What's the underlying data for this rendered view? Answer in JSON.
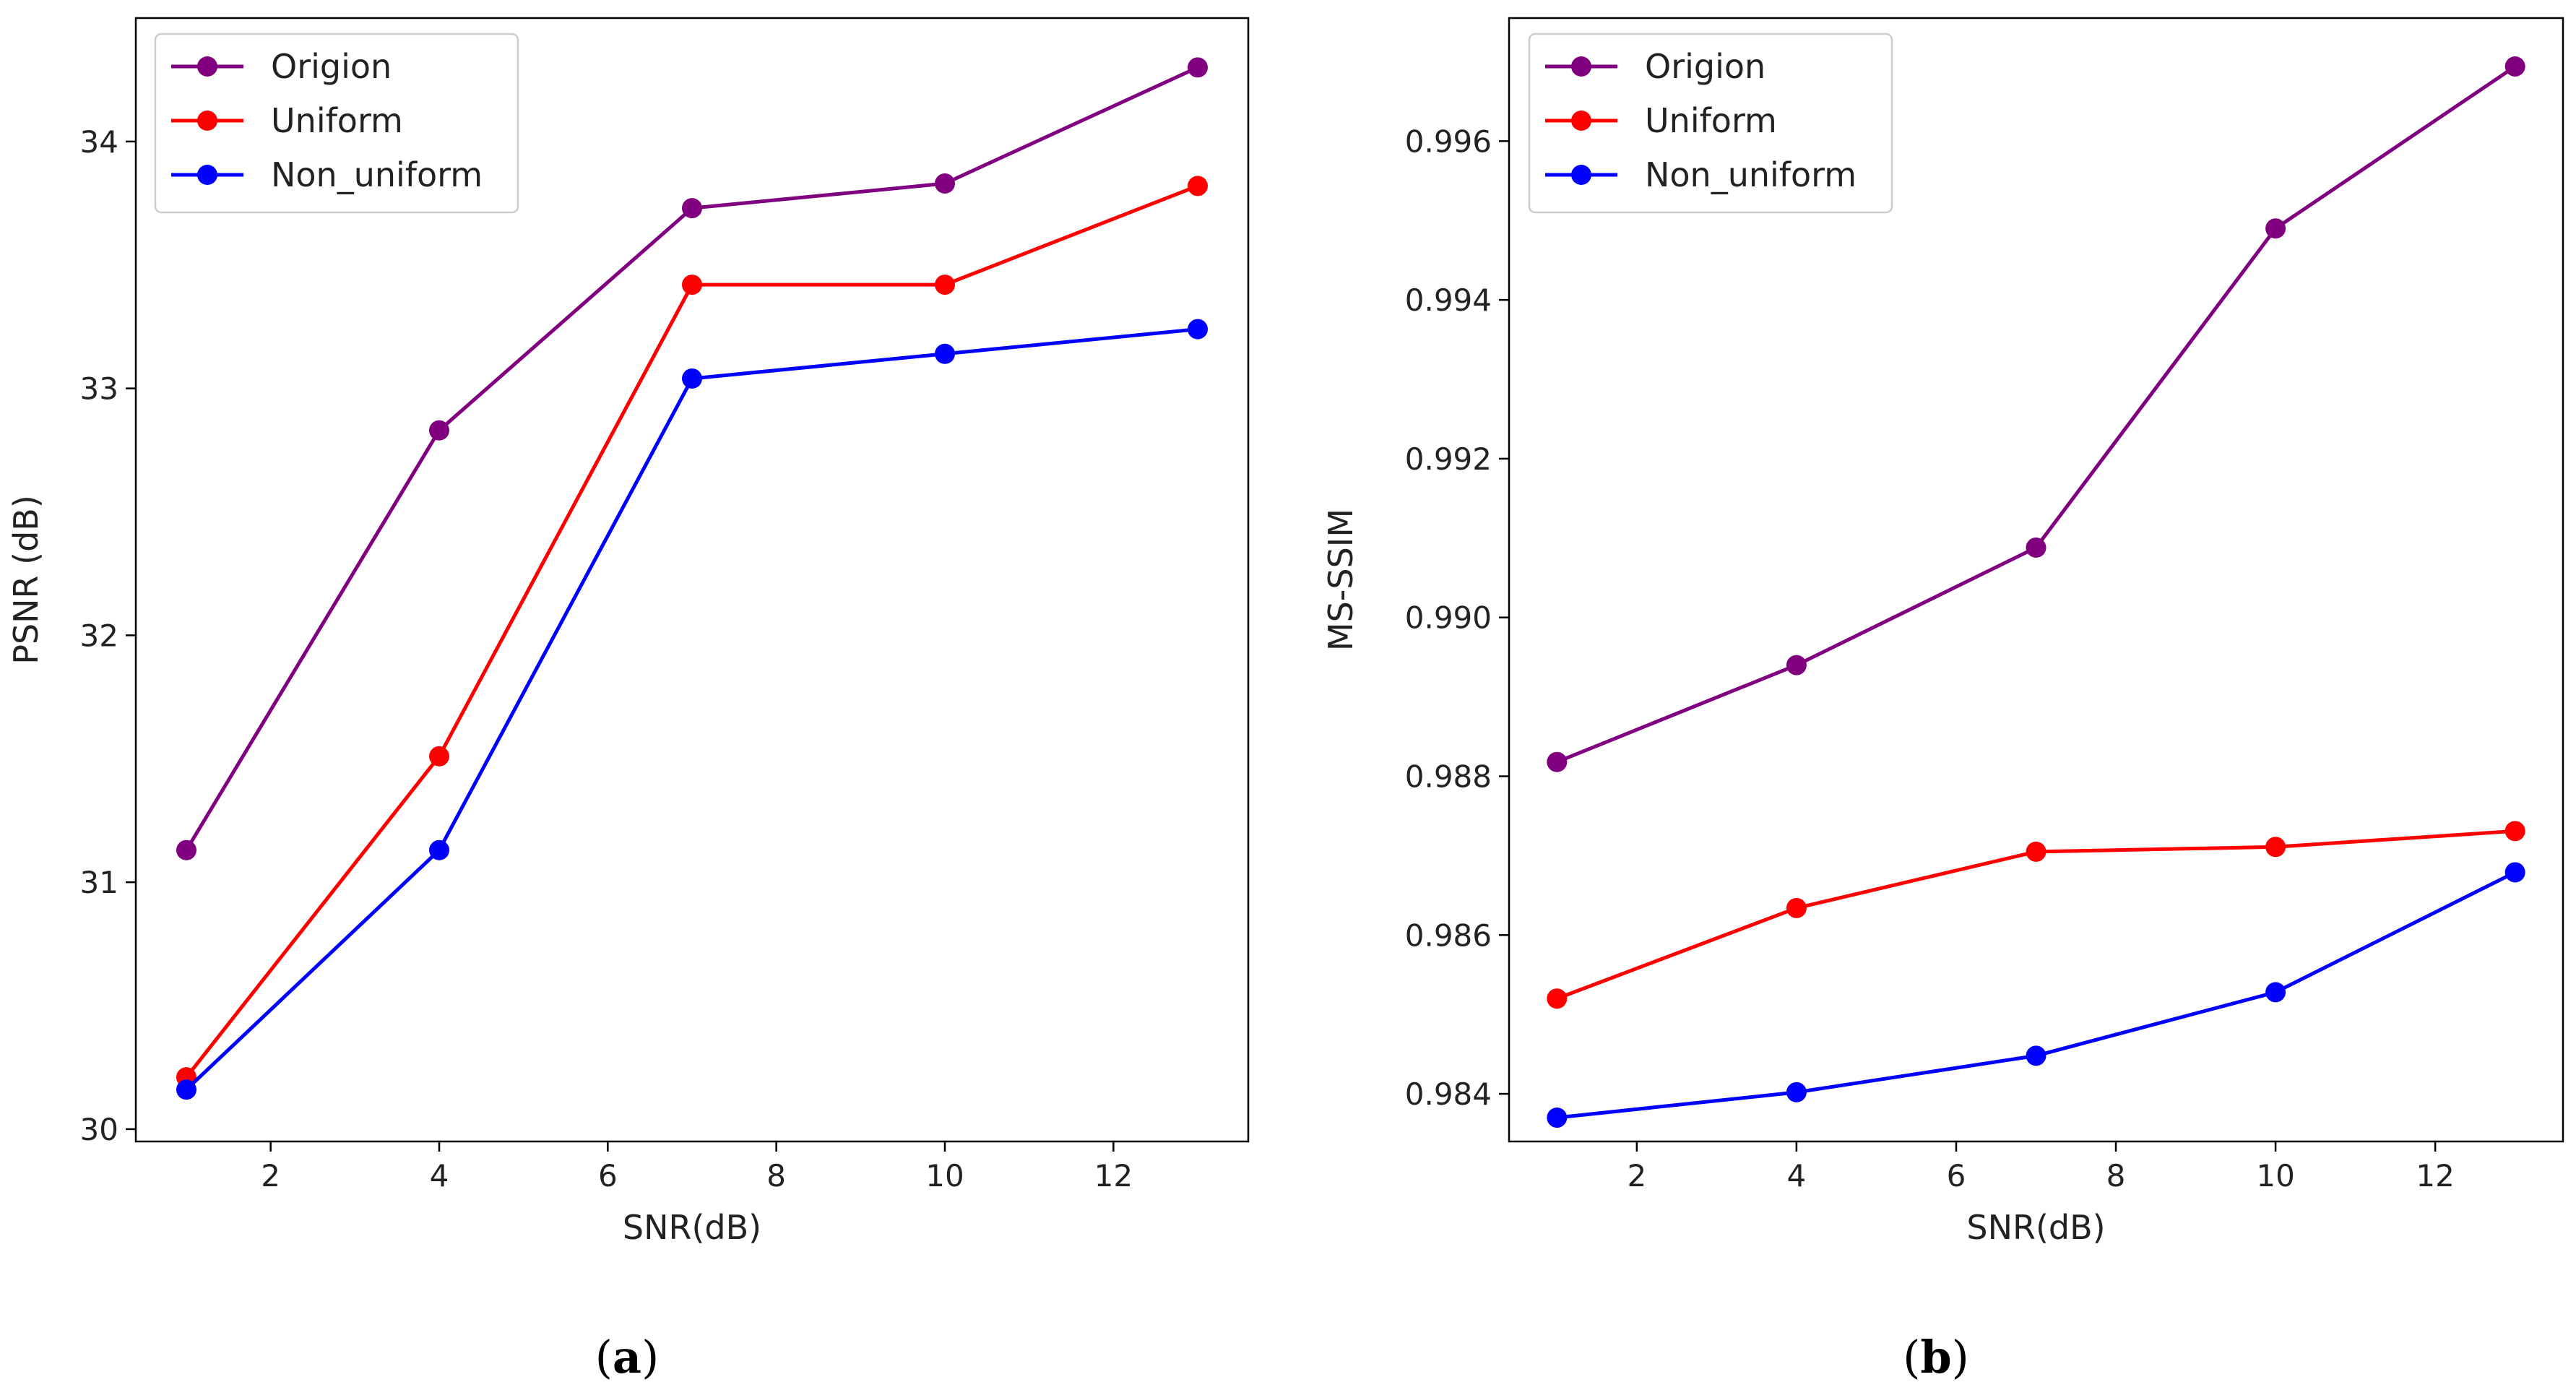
{
  "chart_data": [
    {
      "type": "line",
      "caption": "a",
      "xlabel": "SNR(dB)",
      "ylabel": "PSNR (dB)",
      "x": [
        1,
        4,
        7,
        10,
        13
      ],
      "xlim": [
        0.4,
        13.6
      ],
      "ylim": [
        29.95,
        34.5
      ],
      "xticks": [
        2,
        4,
        6,
        8,
        10,
        12
      ],
      "yticks": [
        30,
        31,
        32,
        33,
        34
      ],
      "ytick_labels": [
        "30",
        "31",
        "32",
        "33",
        "34"
      ],
      "legend_position": "top-left",
      "series": [
        {
          "name": "Origion",
          "color": "#800080",
          "values": [
            31.13,
            32.83,
            33.73,
            33.83,
            34.3
          ]
        },
        {
          "name": "Uniform",
          "color": "#ff0000",
          "values": [
            30.21,
            31.51,
            33.42,
            33.42,
            33.82
          ]
        },
        {
          "name": "Non_uniform",
          "color": "#0000ff",
          "values": [
            30.16,
            31.13,
            33.04,
            33.14,
            33.24
          ]
        }
      ]
    },
    {
      "type": "line",
      "caption": "b",
      "xlabel": "SNR(dB)",
      "ylabel": "MS-SSIM",
      "x": [
        1,
        4,
        7,
        10,
        13
      ],
      "xlim": [
        0.4,
        13.6
      ],
      "ylim": [
        0.9834,
        0.99755
      ],
      "xticks": [
        2,
        4,
        6,
        8,
        10,
        12
      ],
      "yticks": [
        0.984,
        0.986,
        0.988,
        0.99,
        0.992,
        0.994,
        0.996
      ],
      "ytick_labels": [
        "0.984",
        "0.986",
        "0.988",
        "0.990",
        "0.992",
        "0.994",
        "0.996"
      ],
      "legend_position": "top-left",
      "series": [
        {
          "name": "Origion",
          "color": "#800080",
          "values": [
            0.98818,
            0.9894,
            0.99088,
            0.9949,
            0.99694
          ]
        },
        {
          "name": "Uniform",
          "color": "#ff0000",
          "values": [
            0.9852,
            0.98634,
            0.98705,
            0.98711,
            0.98731
          ]
        },
        {
          "name": "Non_uniform",
          "color": "#0000ff",
          "values": [
            0.9837,
            0.98402,
            0.98448,
            0.98528,
            0.98679
          ]
        }
      ]
    }
  ]
}
